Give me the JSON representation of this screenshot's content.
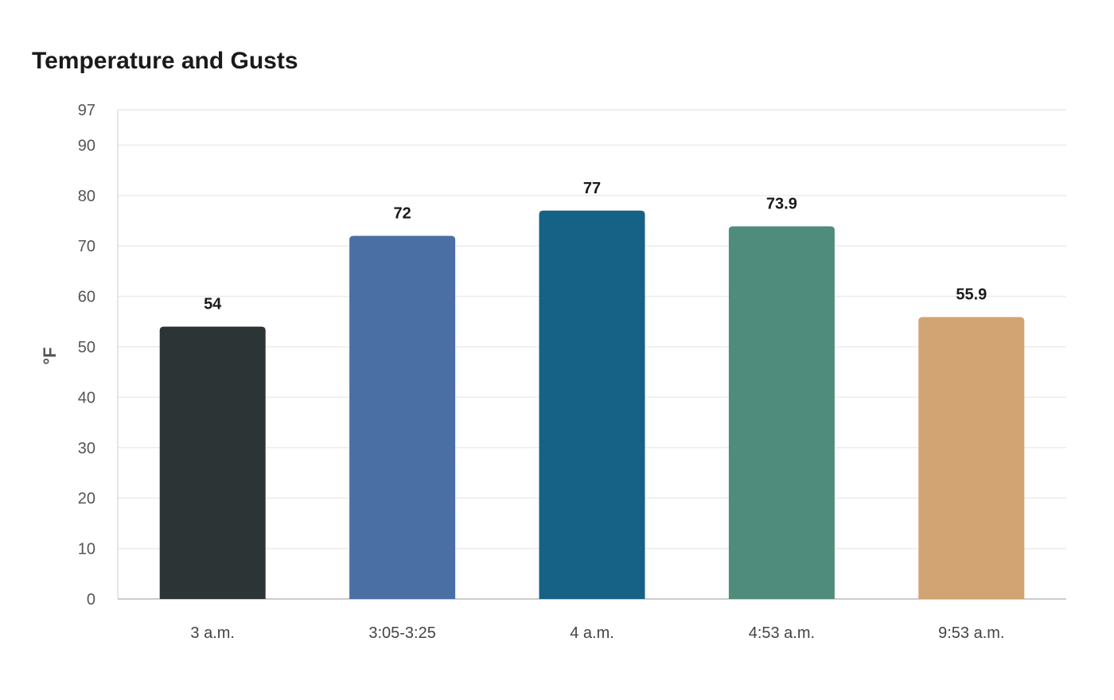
{
  "chart_data": {
    "type": "bar",
    "title": "Temperature and Gusts",
    "xlabel": "",
    "ylabel": "°F",
    "categories": [
      "3 a.m.",
      "3:05-3:25",
      "4 a.m.",
      "4:53 a.m.",
      "9:53 a.m."
    ],
    "values": [
      54,
      72,
      77,
      73.9,
      55.9
    ],
    "data_labels": [
      "54",
      "72",
      "77",
      "73.9",
      "55.9"
    ],
    "colors": [
      "#2d3436",
      "#4a6fa5",
      "#166186",
      "#4f8c7b",
      "#d2a373"
    ],
    "ylim": [
      0,
      97
    ],
    "yticks": [
      0,
      10,
      20,
      30,
      40,
      50,
      60,
      70,
      80,
      90,
      97
    ],
    "grid": true,
    "legend": "none"
  }
}
